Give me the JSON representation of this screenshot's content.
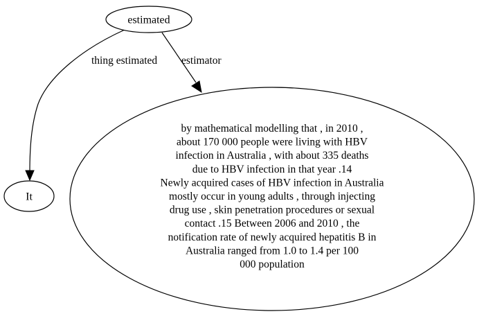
{
  "graph": {
    "nodes": {
      "estimated": {
        "label": "estimated"
      },
      "it": {
        "label": "It"
      },
      "statement": {
        "lines": [
          "by mathematical modelling that , in 2010 ,",
          "about 170 000 people were living with HBV",
          "infection in Australia , with about 335 deaths",
          "due to HBV infection in that year .14",
          "Newly acquired cases of HBV infection in Australia",
          "mostly occur in young adults , through injecting",
          "drug use , skin penetration procedures or sexual",
          "contact .15 Between 2006 and 2010 , the",
          "notification rate of newly acquired hepatitis B in",
          "Australia ranged from 1.0 to 1.4 per 100",
          "000 population"
        ]
      }
    },
    "edges": {
      "thing_estimated": {
        "label": "thing estimated"
      },
      "estimator": {
        "label": "estimator"
      }
    }
  },
  "colors": {
    "stroke": "#000000",
    "background": "#ffffff"
  }
}
